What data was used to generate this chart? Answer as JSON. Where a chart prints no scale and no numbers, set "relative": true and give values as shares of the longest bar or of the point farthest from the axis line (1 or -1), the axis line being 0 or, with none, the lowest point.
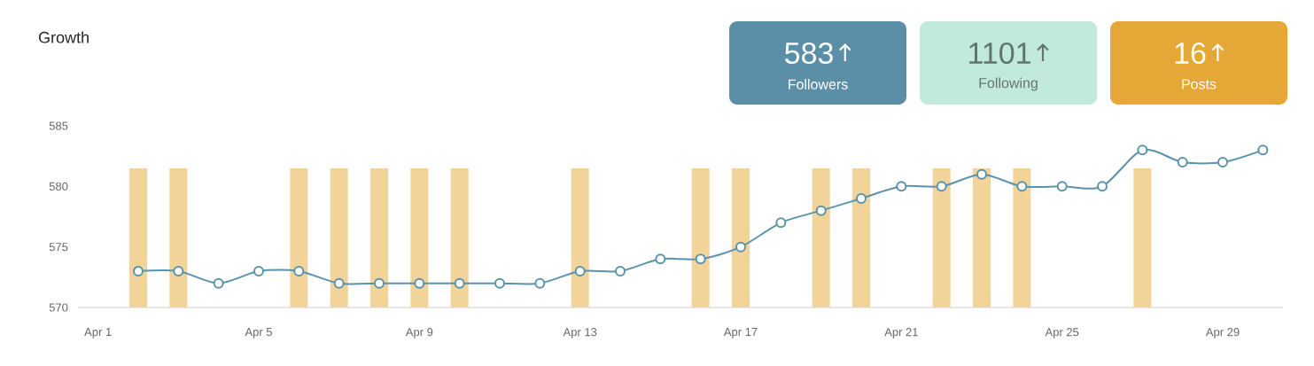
{
  "chart_data": [
    {
      "type": "bar",
      "relative": true,
      "tick_labels": "x",
      "categories": [
        "Apr 1",
        null,
        null,
        null,
        "Apr 5",
        null,
        null,
        null,
        "Apr 9",
        null,
        null,
        null,
        "Apr 13",
        null,
        null,
        null,
        "Apr 17",
        null,
        null,
        null,
        "Apr 21",
        null,
        null,
        null,
        "Apr 25",
        null,
        null,
        null,
        "Apr 29",
        null
      ],
      "color": "#f2d399",
      "values": [
        null,
        1,
        1,
        null,
        null,
        1,
        1,
        1,
        1,
        1,
        null,
        null,
        1,
        null,
        null,
        1,
        1,
        null,
        1,
        1,
        null,
        1,
        1,
        1,
        null,
        null,
        1,
        null,
        null,
        null
      ]
    },
    {
      "type": "line",
      "title": "Growth",
      "tick_labels": "y",
      "categories": [
        null,
        null,
        null,
        null,
        null,
        null,
        null,
        null,
        null,
        null,
        null,
        null,
        null,
        null,
        null,
        null,
        null,
        null,
        null,
        null,
        null,
        null,
        null,
        null,
        null,
        null,
        null,
        null,
        null,
        null
      ],
      "ylim": [
        570,
        585
      ],
      "yticks": [
        570,
        575,
        580,
        585
      ],
      "marker": "circle",
      "color": "#5b93ad",
      "values": [
        null,
        573,
        573,
        572,
        573,
        573,
        572,
        572,
        572,
        572,
        572,
        572,
        573,
        573,
        574,
        574,
        575,
        577,
        578,
        579,
        580,
        580,
        581,
        580,
        580,
        580,
        583,
        582,
        582,
        583
      ]
    },
    {
      "type": "other",
      "categories": [
        "Followers",
        "Following",
        "Posts"
      ],
      "value_labels": [
        "583",
        "1101",
        "16"
      ],
      "colors": [
        "#5b8fa8",
        "#c2eadc",
        "#e5a735"
      ]
    }
  ]
}
